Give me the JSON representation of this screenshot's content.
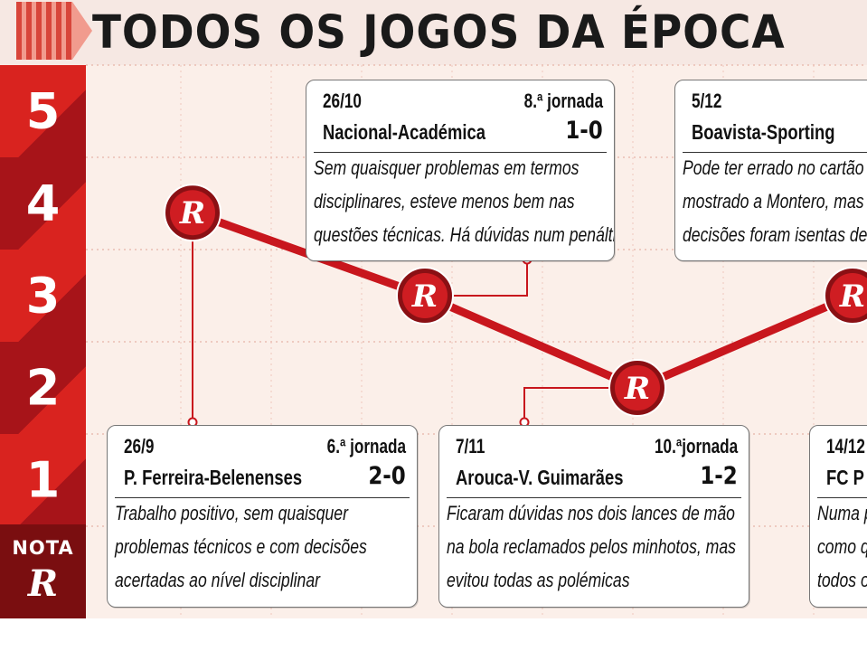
{
  "header": {
    "title": "TODOS OS JOGOS DA ÉPOCA"
  },
  "scale": {
    "labels": [
      "5",
      "4",
      "3",
      "2",
      "1"
    ],
    "nota_label": "NOTA",
    "nota_logo": "R"
  },
  "marker_logo": "R",
  "colors": {
    "accent": "#c8161d",
    "dark_red": "#7a0e10",
    "mid_red": "#a71419",
    "bright_red": "#d9231f",
    "plot_bg": "#fbefe9"
  },
  "chart_data": {
    "type": "line",
    "title": "TODOS OS JOGOS DA ÉPOCA",
    "ylabel": "NOTA",
    "ylim": [
      1,
      5
    ],
    "yticks": [
      5,
      4,
      3,
      2,
      1
    ],
    "categories": [
      "26/9",
      "26/10",
      "7/11",
      "5/12",
      "14/12"
    ],
    "series": [
      {
        "values": [
          3.9,
          3.0,
          2.0,
          3.0,
          null
        ]
      }
    ]
  },
  "games": [
    {
      "date": "26/9",
      "round": "6.ª jornada",
      "teams": "P. Ferreira-Belenenses",
      "score": "2-0",
      "lines": [
        "Trabalho positivo, sem quaisquer",
        "problemas técnicos e com decisões",
        "acertadas ao nível disciplinar"
      ]
    },
    {
      "date": "26/10",
      "round": "8.ª jornada",
      "teams": "Nacional-Académica",
      "score": "1-0",
      "lines": [
        "Sem quaisquer problemas em termos",
        "disciplinares, esteve menos bem nas",
        "questões técnicas. Há dúvidas num penálti"
      ]
    },
    {
      "date": "7/11",
      "round": "10.ªjornada",
      "teams": "Arouca-V. Guimarães",
      "score": "1-2",
      "lines": [
        "Ficaram dúvidas nos dois lances de mão",
        "na bola reclamados pelos minhotos, mas",
        "evitou todas as polémicas"
      ]
    },
    {
      "date": "5/12",
      "round": "",
      "teams": "Boavista-Sporting",
      "score": "",
      "lines": [
        "Pode ter errado no cartão a",
        "mostrado a Montero, mas",
        "decisões foram isentas de"
      ]
    },
    {
      "date": "14/12",
      "round": "",
      "teams": "FC P",
      "score": "",
      "lines": [
        "Numa p",
        "como q",
        "todos o"
      ]
    }
  ]
}
